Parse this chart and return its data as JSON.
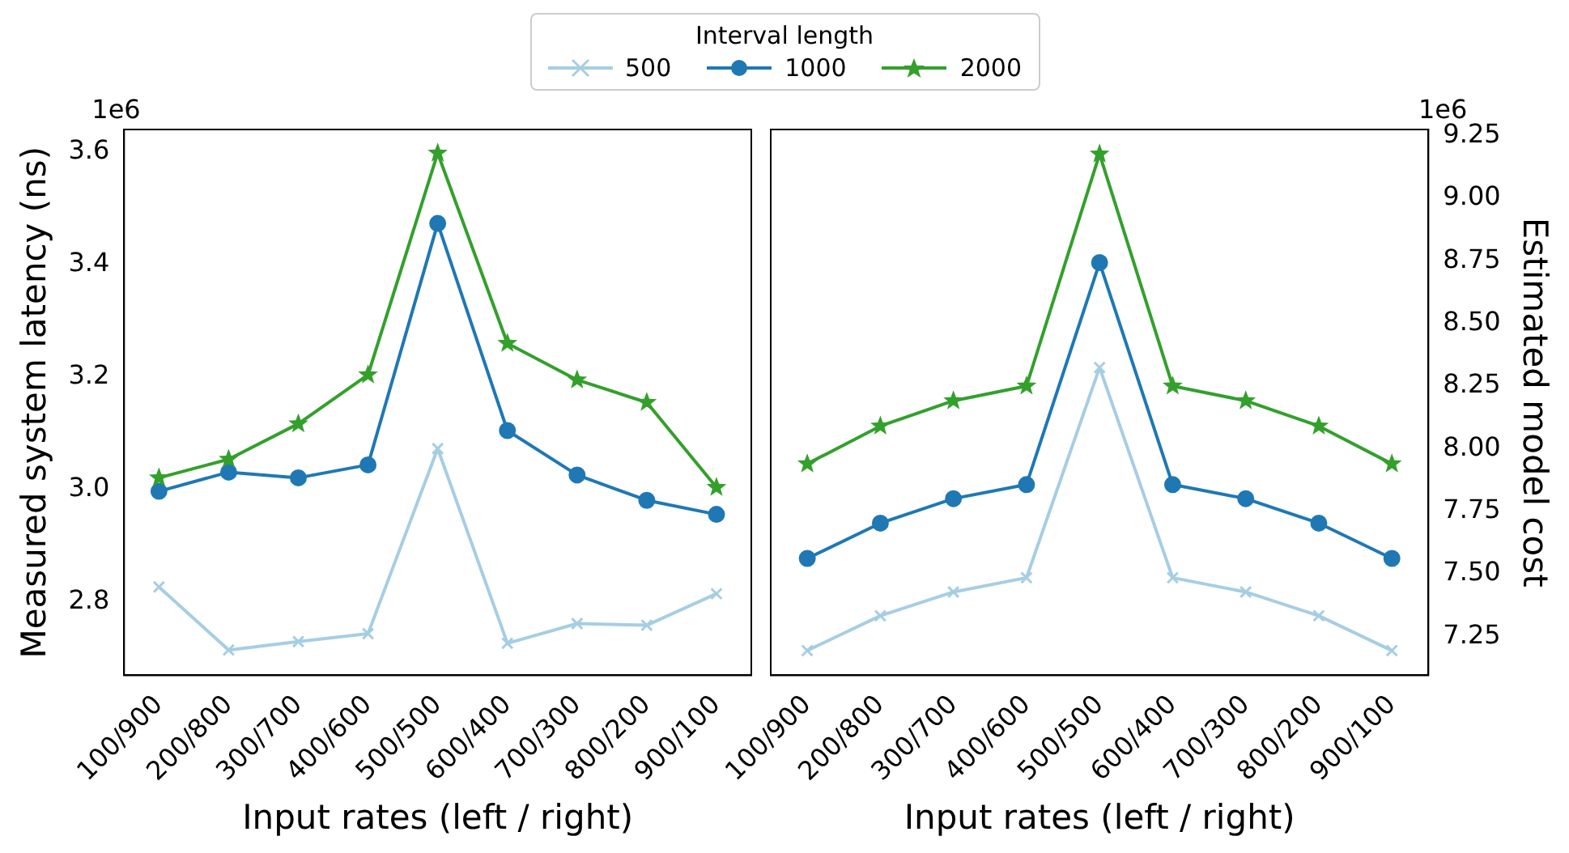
{
  "chart_data": [
    {
      "type": "line",
      "xlabel": "Input rates (left / right)",
      "ylabel": "Measured system latency (ns)",
      "legend_title": "Interval length",
      "legend": "top",
      "grid": false,
      "line_style": "solid",
      "annotations": [
        "1e6"
      ],
      "categories": [
        "100/900",
        "200/800",
        "300/700",
        "400/600",
        "500/500",
        "600/400",
        "700/300",
        "800/200",
        "900/100"
      ],
      "ylim": [
        2.67,
        3.64
      ],
      "yticks": [
        2.8,
        {
          "value": 3,
          "label": "3.0"
        },
        3.2,
        3.4,
        3.6
      ],
      "series": [
        {
          "name": "500",
          "color": "#a6cee3",
          "marker": "cross",
          "values": [
            2.827,
            2.715,
            2.73,
            2.744,
            3.073,
            2.727,
            2.762,
            2.759,
            2.815
          ]
        },
        {
          "name": "1000",
          "color": "#1f78b4",
          "marker": "circle",
          "values": [
            2.997,
            3.031,
            3.021,
            3.044,
            3.473,
            3.105,
            3.026,
            2.981,
            2.956
          ]
        },
        {
          "name": "2000",
          "color": "#33a02c",
          "marker": "star",
          "values": [
            3.021,
            3.054,
            3.117,
            3.204,
            3.598,
            3.26,
            3.195,
            3.155,
            3.004
          ]
        }
      ]
    },
    {
      "type": "line",
      "xlabel": "Input rates (left / right)",
      "y2label": "Estimated model cost",
      "grid": false,
      "line_style": "solid",
      "annotations": [
        "1e6"
      ],
      "categories": [
        "100/900",
        "200/800",
        "300/700",
        "400/600",
        "500/500",
        "600/400",
        "700/300",
        "800/200",
        "900/100"
      ],
      "y2lim": [
        7.094,
        9.275
      ],
      "y2ticks": [
        7.25,
        {
          "value": 7.5,
          "label": "7.50"
        },
        7.75,
        {
          "value": 8,
          "label": "8.00"
        },
        8.25,
        {
          "value": 8.5,
          "label": "8.50"
        },
        8.75,
        {
          "value": 9,
          "label": "9.00"
        },
        9.25
      ],
      "series": [
        {
          "color": "#a6cee3",
          "marker": "cross",
          "axis": "y2",
          "values": [
            7.193,
            7.332,
            7.427,
            7.484,
            8.324,
            7.484,
            7.427,
            7.332,
            7.193
          ]
        },
        {
          "color": "#1f78b4",
          "marker": "circle",
          "axis": "y2",
          "values": [
            7.561,
            7.702,
            7.8,
            7.856,
            8.743,
            7.856,
            7.8,
            7.702,
            7.561
          ]
        },
        {
          "color": "#33a02c",
          "marker": "star",
          "axis": "y2",
          "values": [
            7.939,
            8.09,
            8.191,
            8.25,
            9.177,
            8.25,
            8.191,
            8.09,
            7.939
          ]
        }
      ]
    }
  ]
}
